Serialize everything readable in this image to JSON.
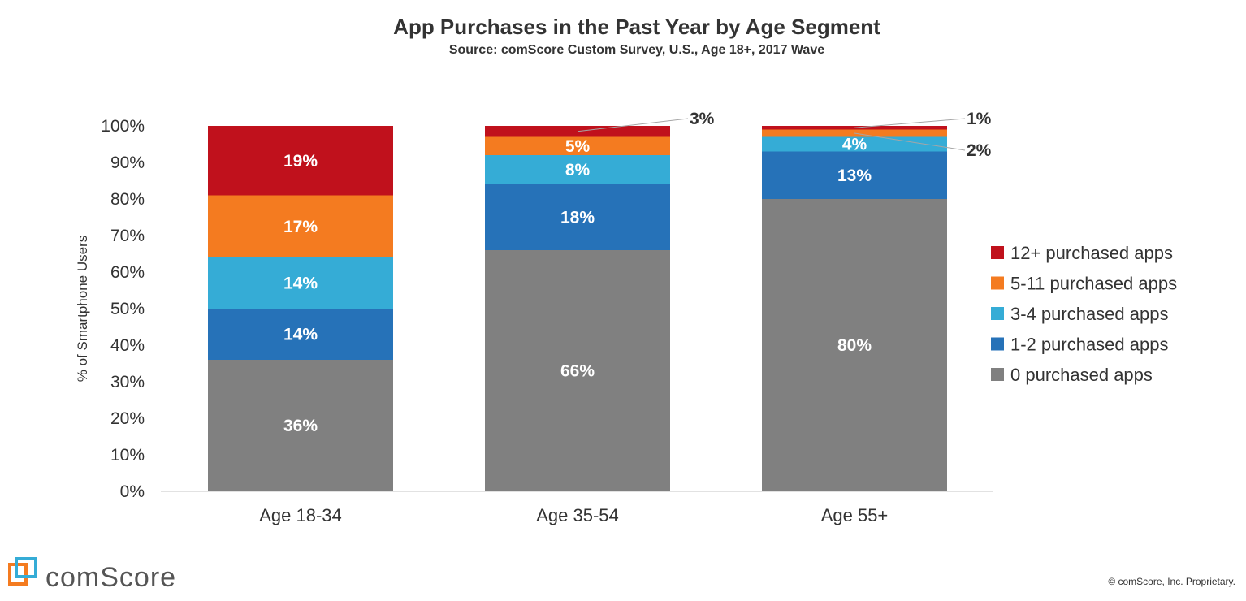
{
  "chart_data": {
    "type": "bar",
    "stacked": true,
    "title": "App Purchases in the Past Year by Age Segment",
    "subtitle": "Source: comScore Custom Survey, U.S., Age 18+, 2017 Wave",
    "ylabel": "% of Smartphone Users",
    "xlabel": "",
    "ylim": [
      0,
      100
    ],
    "ytick_labels": [
      "0%",
      "10%",
      "20%",
      "30%",
      "40%",
      "50%",
      "60%",
      "70%",
      "80%",
      "90%",
      "100%"
    ],
    "categories": [
      "Age 18-34",
      "Age 35-54",
      "Age 55+"
    ],
    "legend_position": "right",
    "grid": false,
    "series": [
      {
        "name": "0 purchased apps",
        "color": "#808080",
        "values": [
          36,
          66,
          80
        ],
        "labels": [
          "36%",
          "66%",
          "80%"
        ]
      },
      {
        "name": "1-2 purchased apps",
        "color": "#2672b8",
        "values": [
          14,
          18,
          13
        ],
        "labels": [
          "14%",
          "18%",
          "13%"
        ]
      },
      {
        "name": "3-4 purchased apps",
        "color": "#35acd6",
        "values": [
          14,
          8,
          4
        ],
        "labels": [
          "14%",
          "8%",
          "4%"
        ]
      },
      {
        "name": "5-11 purchased apps",
        "color": "#f47b20",
        "values": [
          17,
          5,
          2
        ],
        "labels": [
          "17%",
          "5%",
          "2%"
        ]
      },
      {
        "name": "12+ purchased apps",
        "color": "#c0111c",
        "values": [
          19,
          3,
          1
        ],
        "labels": [
          "19%",
          "3%",
          "1%"
        ]
      }
    ]
  },
  "footer": {
    "brand": "comScore",
    "copyright": "© comScore, Inc. Proprietary."
  }
}
